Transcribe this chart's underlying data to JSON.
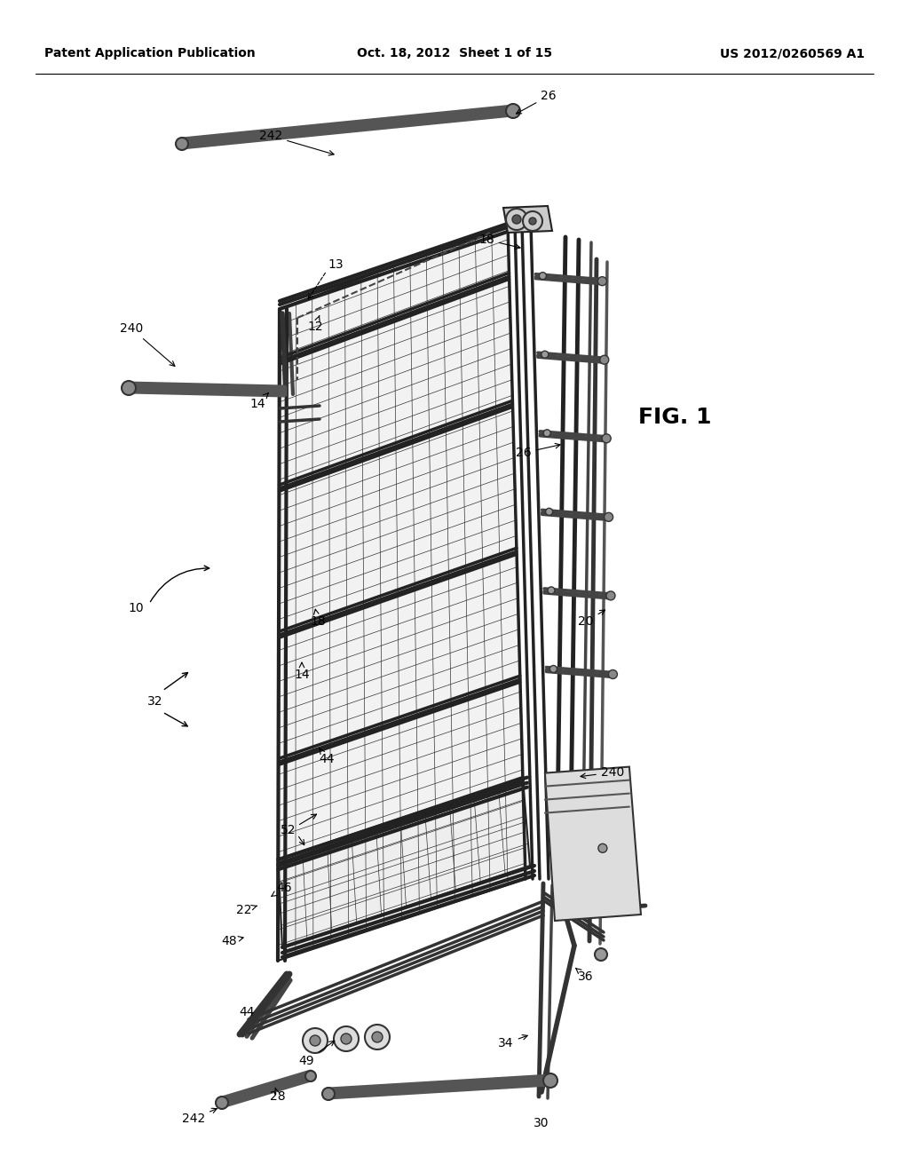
{
  "background_color": "#ffffff",
  "header_left": "Patent Application Publication",
  "header_center": "Oct. 18, 2012  Sheet 1 of 15",
  "header_right": "US 2012/0260569 A1",
  "fig_label": "FIG. 1",
  "title_fontsize": 11,
  "fig_label_fontsize": 16
}
